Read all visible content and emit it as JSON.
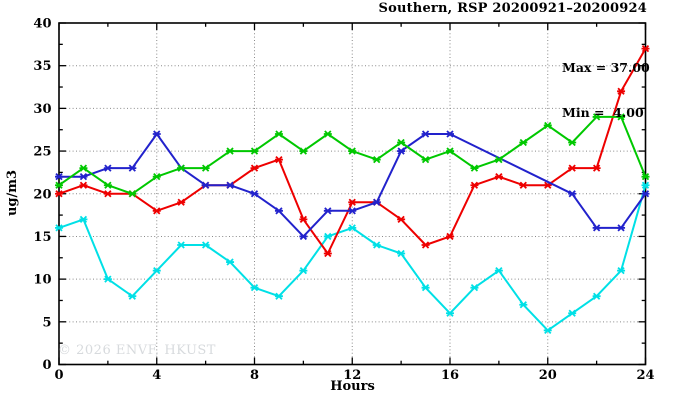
{
  "title": "Southern, RSP 20200921–20200924",
  "annotation": {
    "max_label": "Max = 37.00",
    "min_label": "Min =  4.00"
  },
  "watermark": "© 2026 ENVF, HKUST",
  "chart_data": {
    "type": "line",
    "title": "Southern, RSP 20200921–20200924",
    "xlabel": "Hours",
    "ylabel": "ug/m3",
    "xlim": [
      0,
      24
    ],
    "ylim": [
      0,
      40
    ],
    "xticks": [
      0,
      4,
      8,
      12,
      16,
      20,
      24
    ],
    "yticks": [
      0,
      5,
      10,
      15,
      20,
      25,
      30,
      35,
      40
    ],
    "x_minor_ticks": [
      2,
      6,
      10,
      14,
      18,
      22
    ],
    "y_minor_ticks": [
      2.5,
      7.5,
      12.5,
      17.5,
      22.5,
      27.5,
      32.5,
      37.5
    ],
    "grid": true,
    "legend": "none",
    "marker": "star",
    "stat_max": 37.0,
    "stat_min": 4.0,
    "grid_color": "#8a8a8a",
    "frame_color": "#000000",
    "series": [
      {
        "name": "series-cyan",
        "color": "#00e0e6",
        "points": [
          [
            0,
            16
          ],
          [
            1,
            17
          ],
          [
            2,
            10
          ],
          [
            3,
            8
          ],
          [
            4,
            11
          ],
          [
            5,
            14
          ],
          [
            6,
            14
          ],
          [
            7,
            12
          ],
          [
            8,
            9
          ],
          [
            9,
            8
          ],
          [
            10,
            11
          ],
          [
            11,
            15
          ],
          [
            12,
            16
          ],
          [
            13,
            14
          ],
          [
            14,
            13
          ],
          [
            15,
            9
          ],
          [
            16,
            6
          ],
          [
            17,
            9
          ],
          [
            18,
            11
          ],
          [
            19,
            7
          ],
          [
            20,
            4
          ],
          [
            21,
            6
          ],
          [
            22,
            8
          ],
          [
            23,
            11
          ],
          [
            24,
            21
          ]
        ]
      },
      {
        "name": "series-red",
        "color": "#ee0000",
        "points": [
          [
            0,
            20
          ],
          [
            1,
            21
          ],
          [
            2,
            20
          ],
          [
            3,
            20
          ],
          [
            4,
            18
          ],
          [
            5,
            19
          ],
          [
            6,
            21
          ],
          [
            7,
            21
          ],
          [
            8,
            23
          ],
          [
            9,
            24
          ],
          [
            10,
            17
          ],
          [
            11,
            13
          ],
          [
            12,
            19
          ],
          [
            13,
            19
          ],
          [
            14,
            17
          ],
          [
            15,
            14
          ],
          [
            16,
            15
          ],
          [
            17,
            21
          ],
          [
            18,
            22
          ],
          [
            19,
            21
          ],
          [
            20,
            21
          ],
          [
            21,
            23
          ],
          [
            22,
            23
          ],
          [
            23,
            32
          ],
          [
            24,
            37
          ]
        ]
      },
      {
        "name": "series-blue",
        "color": "#2222cc",
        "points": [
          [
            0,
            22
          ],
          [
            1,
            22
          ],
          [
            2,
            23
          ],
          [
            3,
            23
          ],
          [
            4,
            27
          ],
          [
            5,
            23
          ],
          [
            6,
            21
          ],
          [
            7,
            21
          ],
          [
            8,
            20
          ],
          [
            9,
            18
          ],
          [
            10,
            15
          ],
          [
            11,
            18
          ],
          [
            12,
            18
          ],
          [
            13,
            19
          ],
          [
            14,
            25
          ],
          [
            15,
            27
          ],
          [
            16,
            27
          ],
          [
            21,
            20
          ],
          [
            22,
            16
          ],
          [
            23,
            16
          ],
          [
            24,
            20
          ]
        ]
      },
      {
        "name": "series-green",
        "color": "#00c800",
        "points": [
          [
            0,
            21
          ],
          [
            1,
            23
          ],
          [
            2,
            21
          ],
          [
            3,
            20
          ],
          [
            4,
            22
          ],
          [
            5,
            23
          ],
          [
            6,
            23
          ],
          [
            7,
            25
          ],
          [
            8,
            25
          ],
          [
            9,
            27
          ],
          [
            10,
            25
          ],
          [
            11,
            27
          ],
          [
            12,
            25
          ],
          [
            13,
            24
          ],
          [
            14,
            26
          ],
          [
            15,
            24
          ],
          [
            16,
            25
          ],
          [
            17,
            23
          ],
          [
            18,
            24
          ],
          [
            19,
            26
          ],
          [
            20,
            28
          ],
          [
            21,
            26
          ],
          [
            22,
            29
          ],
          [
            23,
            29
          ],
          [
            24,
            22
          ]
        ]
      }
    ]
  }
}
